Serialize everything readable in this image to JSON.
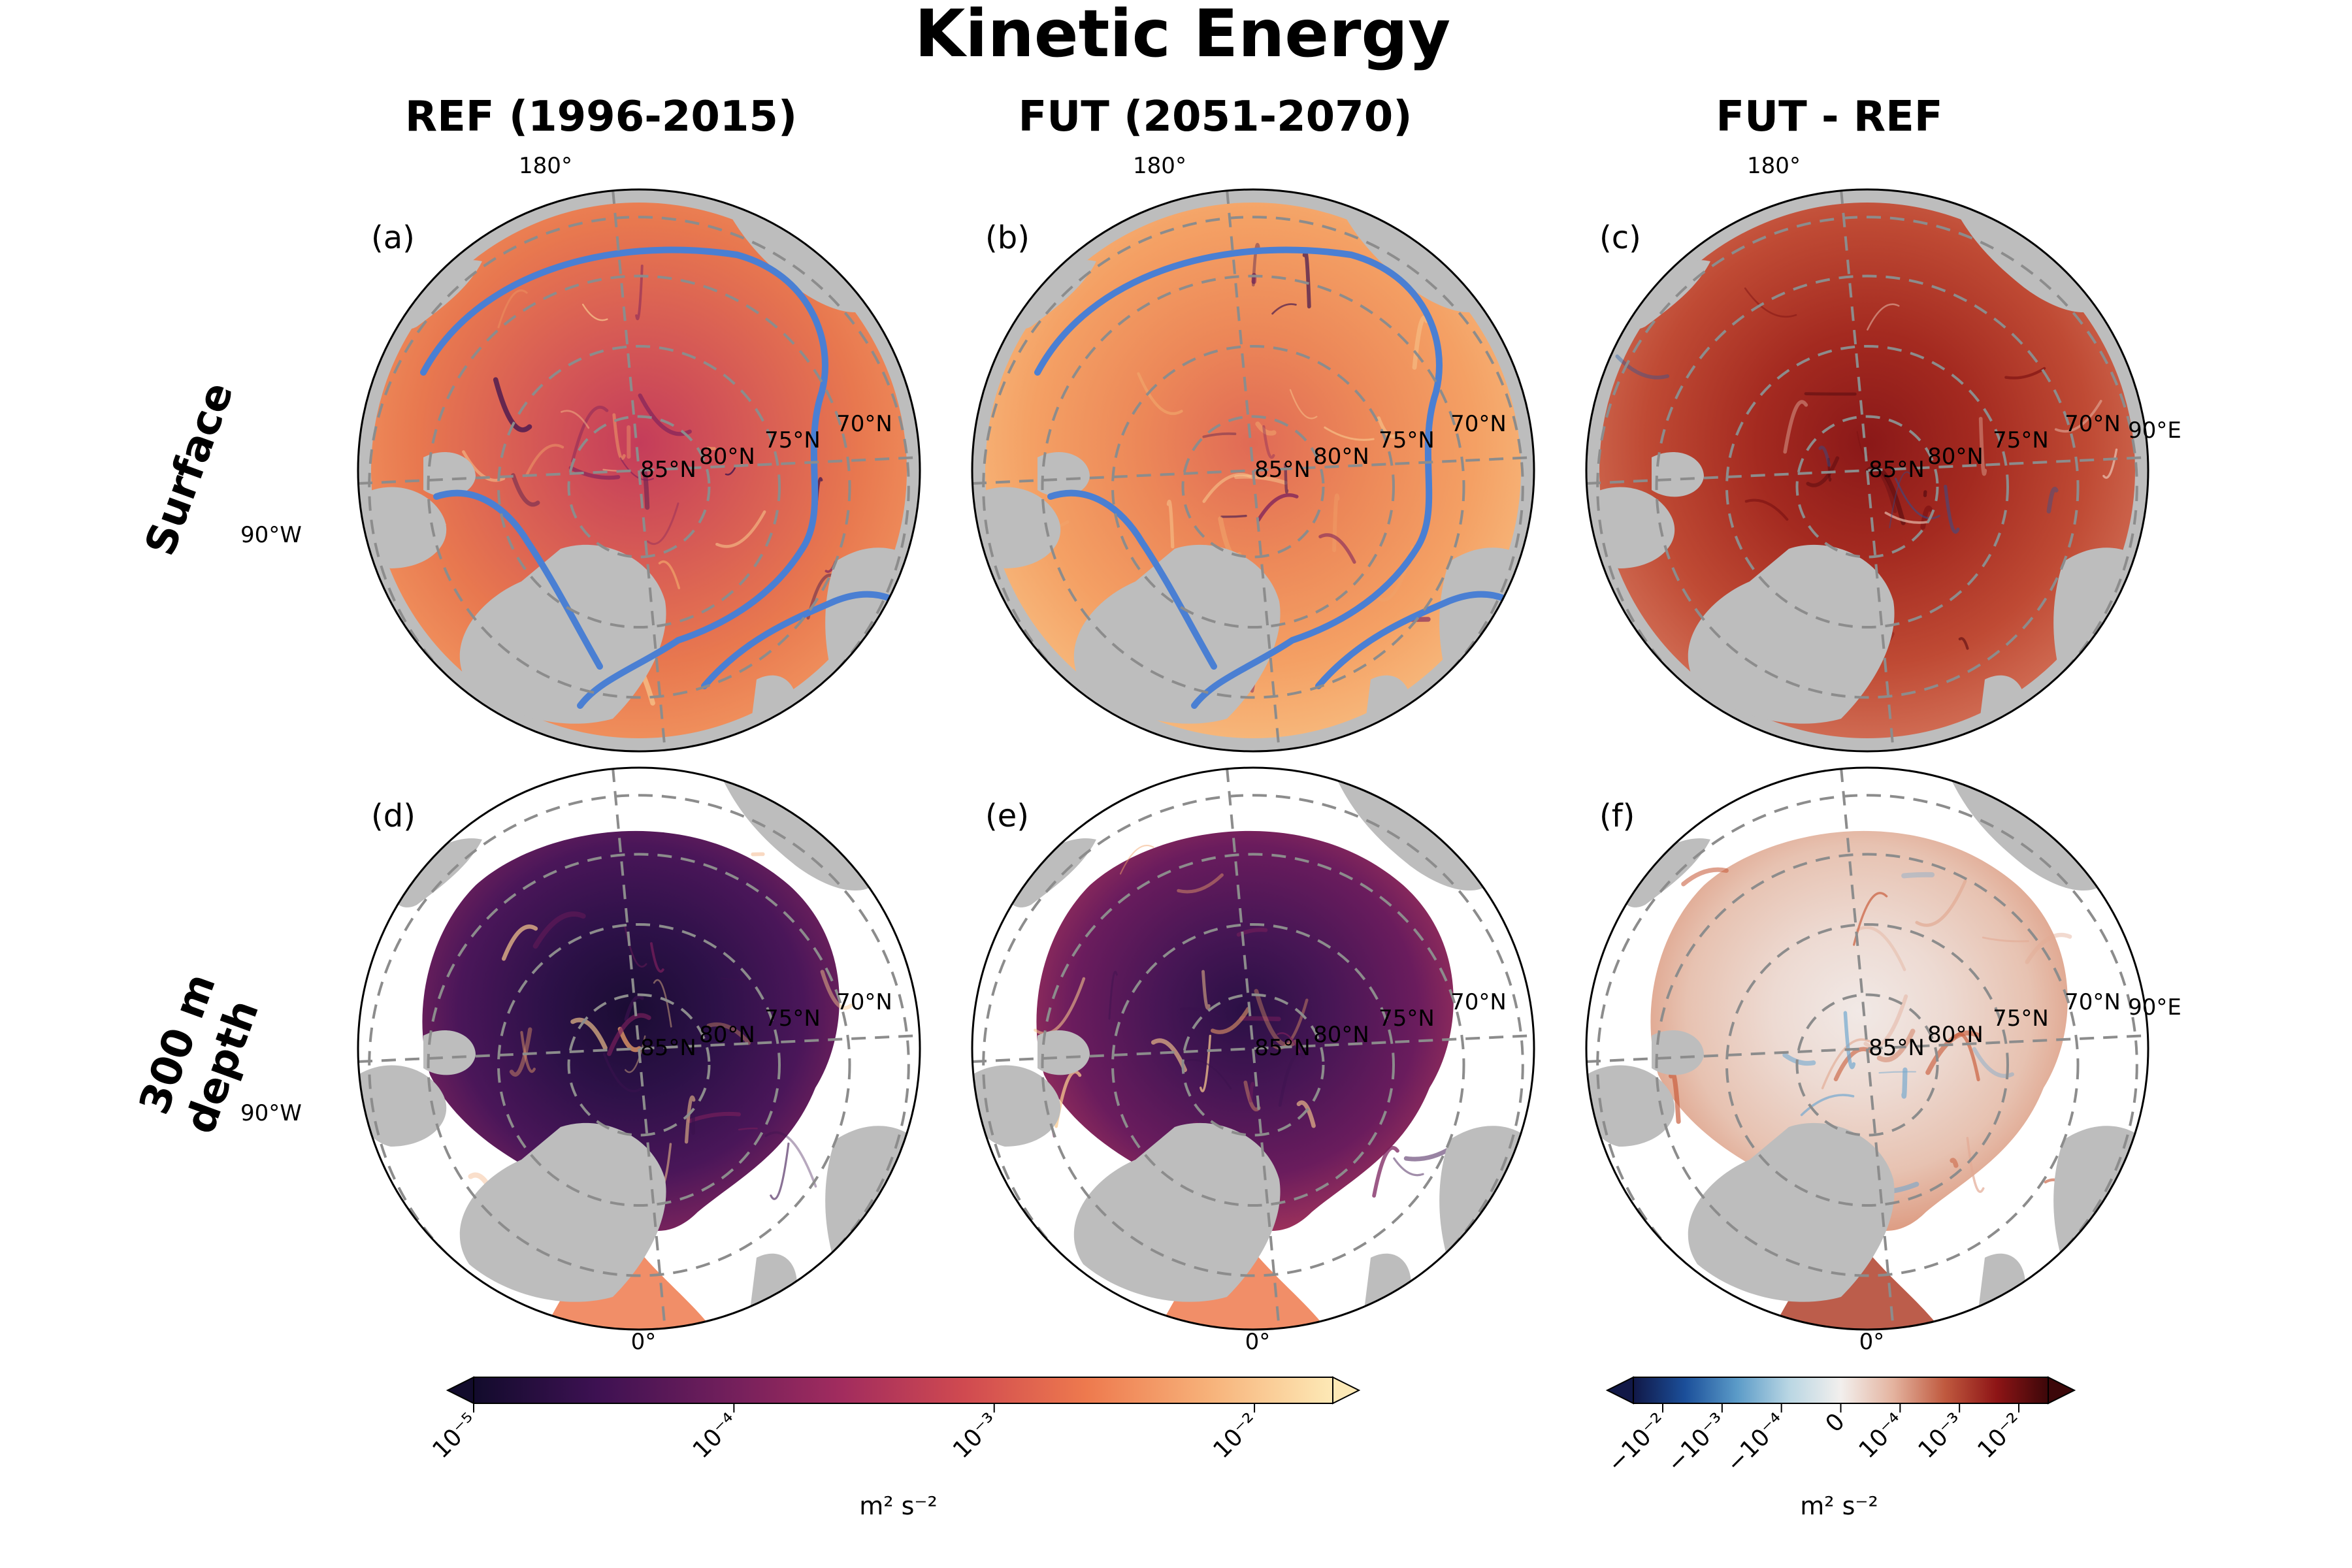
{
  "figure": {
    "title": "Kinetic Energy",
    "columns": [
      "REF (1996-2015)",
      "FUT (2051-2070)",
      "FUT - REF"
    ],
    "rows": [
      "Surface",
      "300 m depth"
    ],
    "rows_display": [
      "Surface",
      "300 m",
      "depth"
    ]
  },
  "panels": [
    {
      "label": "(a)",
      "row": "Surface",
      "column": "REF (1996-2015)",
      "style": "ke",
      "tone": "mid",
      "contour": true
    },
    {
      "label": "(b)",
      "row": "Surface",
      "column": "FUT (2051-2070)",
      "style": "ke",
      "tone": "light",
      "contour": true
    },
    {
      "label": "(c)",
      "row": "Surface",
      "column": "FUT - REF",
      "style": "diff",
      "tone": "strong",
      "contour": false
    },
    {
      "label": "(d)",
      "row": "300 m depth",
      "column": "REF (1996-2015)",
      "style": "ke",
      "tone": "dark",
      "contour": false
    },
    {
      "label": "(e)",
      "row": "300 m depth",
      "column": "FUT (2051-2070)",
      "style": "ke",
      "tone": "darkmid",
      "contour": false
    },
    {
      "label": "(f)",
      "row": "300 m depth",
      "column": "FUT - REF",
      "style": "diff",
      "tone": "weak",
      "contour": false
    }
  ],
  "map_labels": {
    "lon_top": "180°",
    "lon_left": "90°W",
    "lon_right": "90°E",
    "lon_bottom": "0°",
    "lat": [
      "85°N",
      "80°N",
      "75°N",
      "70°N"
    ]
  },
  "colorbars": [
    {
      "name": "kinetic-energy",
      "colormap": [
        "#120b2c",
        "#3d1152",
        "#6e1e5b",
        "#a22c5e",
        "#d04a50",
        "#ee7a4e",
        "#f7b27a",
        "#fde9b6"
      ],
      "scale": "log",
      "range": [
        1e-05,
        0.02
      ],
      "tick_labels": [
        "10⁻⁵",
        "10⁻⁴",
        "10⁻³",
        "10⁻²"
      ],
      "unit": "m² s⁻²",
      "extend": "both"
    },
    {
      "name": "kinetic-energy-difference",
      "colormap": [
        "#111847",
        "#1b4f9a",
        "#5b9bc8",
        "#b9d6e3",
        "#f2efed",
        "#e4b4a0",
        "#c05a3f",
        "#8e1516",
        "#3c0709"
      ],
      "scale": "symlog",
      "tick_labels": [
        "−10⁻²",
        "−10⁻³",
        "−10⁻⁴",
        "0",
        "10⁻⁴",
        "10⁻³",
        "10⁻²"
      ],
      "unit": "m² s⁻²",
      "extend": "both"
    }
  ],
  "colors": {
    "land": "#bdbdbd",
    "contour": "#4a7fd3",
    "graticule": "#8c8c8c",
    "mask_fill": "#ffffff"
  }
}
